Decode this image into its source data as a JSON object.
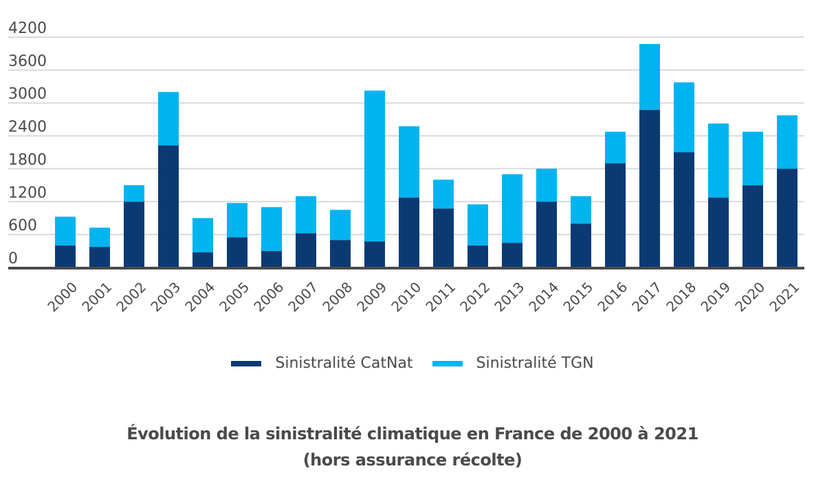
{
  "chart_data": {
    "type": "bar",
    "stacked": true,
    "title": "Évolution de la sinistralité climatique en France de 2000 à 2021",
    "subtitle": "(hors assurance récolte)",
    "xlabel": "",
    "ylabel": "",
    "ylim": [
      0,
      4200
    ],
    "yticks": [
      0,
      600,
      1200,
      1800,
      2400,
      3000,
      3600,
      4200
    ],
    "grid": true,
    "legend_position": "bottom",
    "categories": [
      "2000",
      "2001",
      "2002",
      "2003",
      "2004",
      "2005",
      "2006",
      "2007",
      "2008",
      "2009",
      "2010",
      "2011",
      "2012",
      "2013",
      "2014",
      "2015",
      "2016",
      "2017",
      "2018",
      "2019",
      "2020",
      "2021"
    ],
    "series": [
      {
        "name": "Sinistralité CatNat",
        "color": "#0b3a73",
        "values": [
          400,
          375,
          1200,
          2225,
          275,
          550,
          300,
          625,
          500,
          475,
          1275,
          1075,
          400,
          450,
          1200,
          800,
          1900,
          2875,
          2100,
          1275,
          1500,
          1800
        ]
      },
      {
        "name": "Sinistralité TGN",
        "color": "#00b4f0",
        "values": [
          525,
          350,
          300,
          975,
          625,
          625,
          800,
          675,
          550,
          2750,
          1300,
          525,
          750,
          1250,
          600,
          500,
          575,
          1200,
          1275,
          1350,
          975,
          975
        ]
      }
    ]
  }
}
